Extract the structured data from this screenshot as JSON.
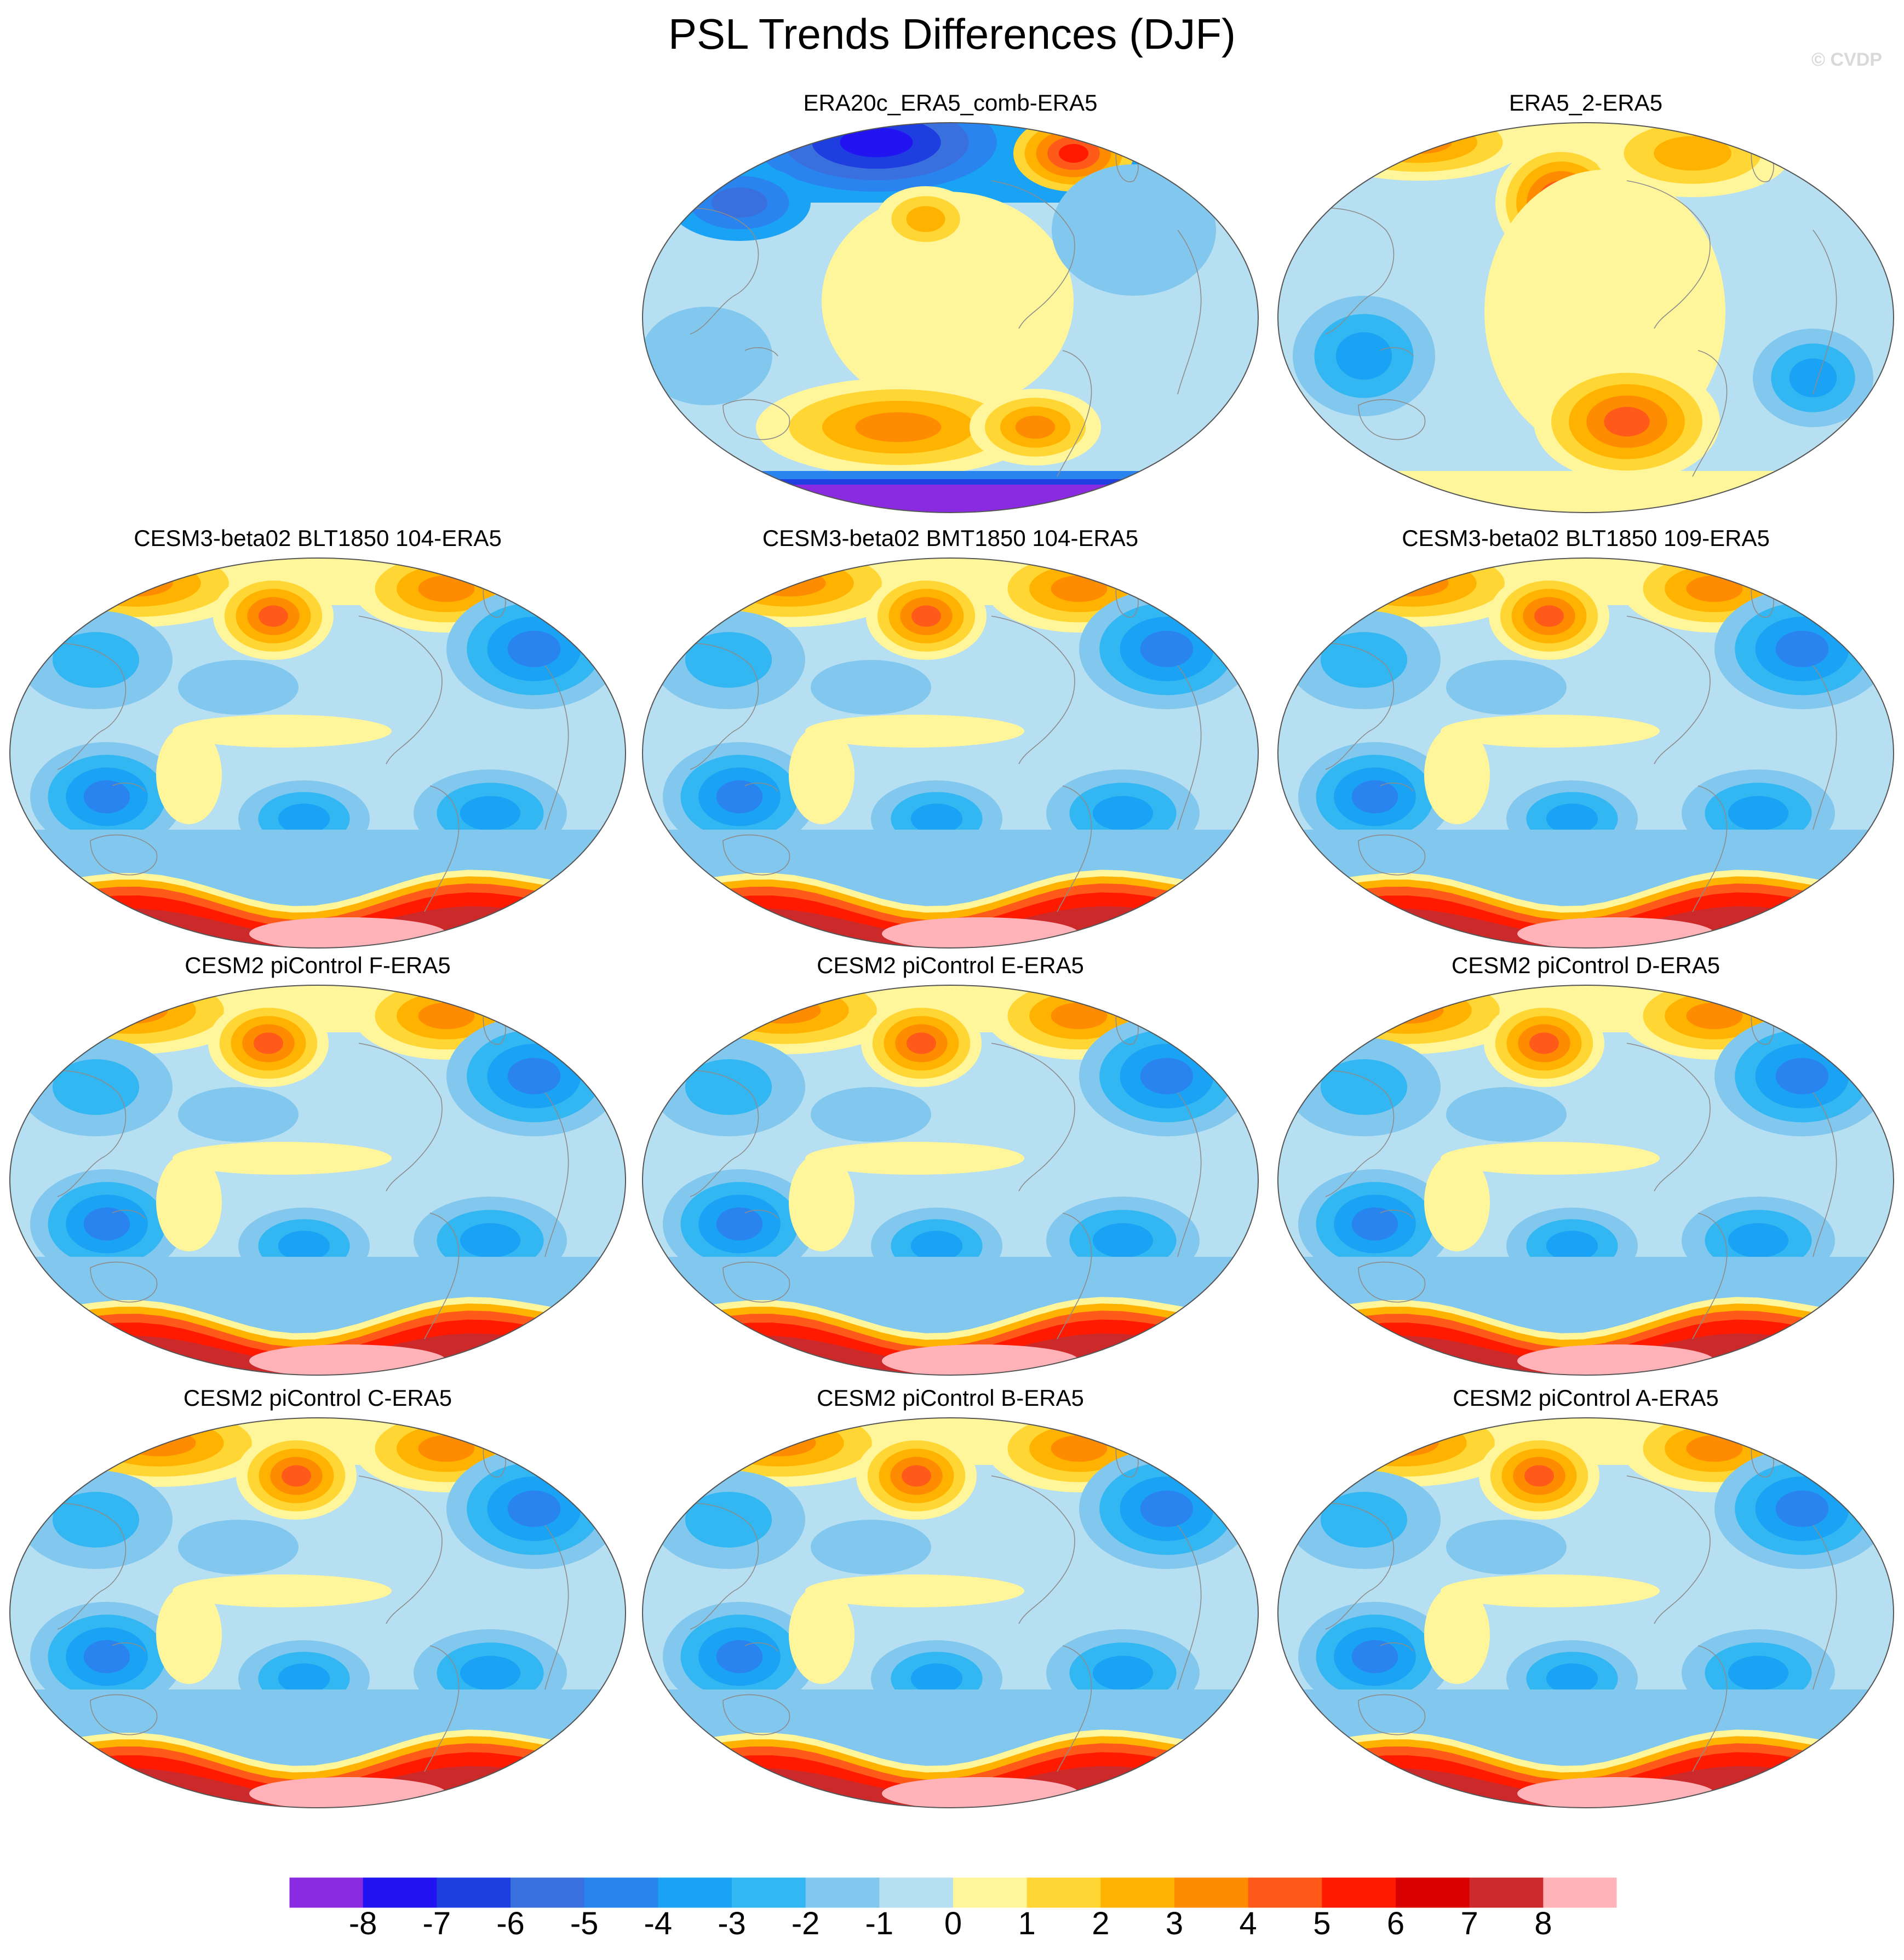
{
  "figure": {
    "title": "PSL Trends Differences (DJF)",
    "watermark": "© CVDP"
  },
  "panels": [
    {
      "title": "ERA20c_ERA5_comb-ERA5",
      "variant": "era20c"
    },
    {
      "title": "ERA5_2-ERA5",
      "variant": "era5_2"
    },
    {
      "title": "CESM3-beta02 BLT1850 104-ERA5",
      "variant": "model"
    },
    {
      "title": "CESM3-beta02 BMT1850 104-ERA5",
      "variant": "model"
    },
    {
      "title": "CESM3-beta02 BLT1850 109-ERA5",
      "variant": "model"
    },
    {
      "title": "CESM2 piControl F-ERA5",
      "variant": "model"
    },
    {
      "title": "CESM2 piControl E-ERA5",
      "variant": "model"
    },
    {
      "title": "CESM2 piControl D-ERA5",
      "variant": "model"
    },
    {
      "title": "CESM2 piControl C-ERA5",
      "variant": "model"
    },
    {
      "title": "CESM2 piControl B-ERA5",
      "variant": "model"
    },
    {
      "title": "CESM2 piControl A-ERA5",
      "variant": "model"
    }
  ],
  "colorbar": {
    "labels": [
      "-8",
      "-7",
      "-6",
      "-5",
      "-4",
      "-3",
      "-2",
      "-1",
      "0",
      "1",
      "2",
      "3",
      "4",
      "5",
      "6",
      "7",
      "8"
    ],
    "colors": [
      "#8a2be2",
      "#2214f0",
      "#1f3ee0",
      "#3a6fde",
      "#2a84f0",
      "#1aa3f5",
      "#32b7f2",
      "#82c8ee",
      "#b7dff2",
      "#fff59a",
      "#ffd633",
      "#ffb300",
      "#ff8c00",
      "#ff5a1a",
      "#ff1a00",
      "#d90000",
      "#cc2a2a",
      "#ffb3b8"
    ]
  }
}
